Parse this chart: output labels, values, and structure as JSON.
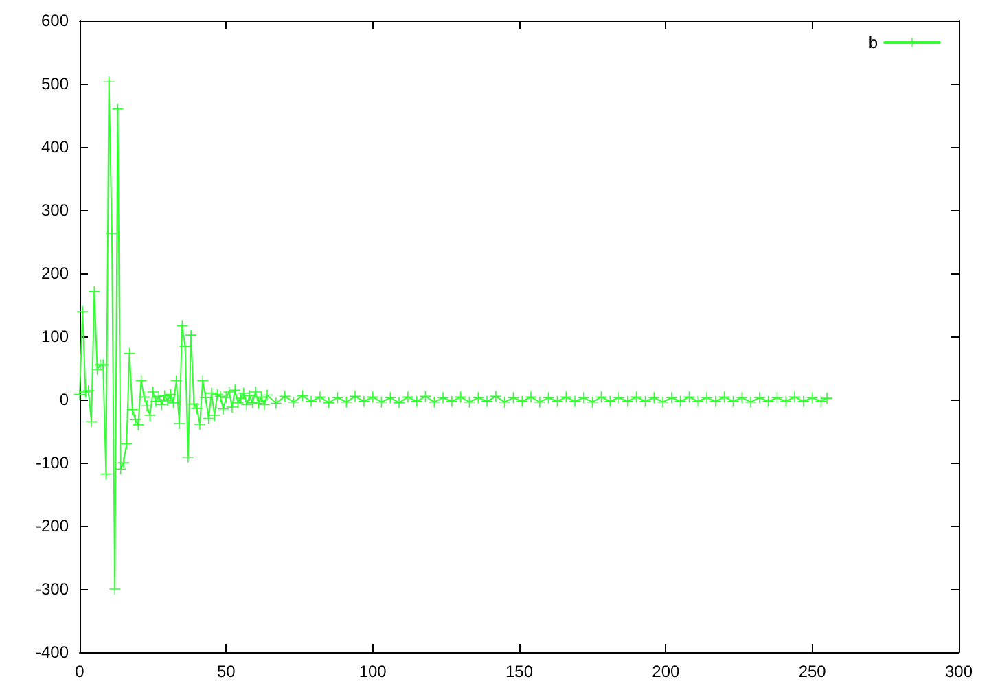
{
  "chart_data": {
    "type": "line",
    "marker": "cross",
    "line_style": "solid",
    "legend": "top right",
    "grid": false,
    "xlim": [
      0,
      300
    ],
    "xticks": [
      0,
      50,
      100,
      150,
      200,
      250,
      300
    ],
    "ylim": [
      -400,
      600
    ],
    "yticks": [
      -400,
      -300,
      -200,
      -100,
      0,
      100,
      200,
      300,
      400,
      500,
      600
    ],
    "series": [
      {
        "name": "b",
        "color": "#33ff33",
        "x": [
          0,
          1,
          2,
          3,
          4,
          5,
          6,
          7,
          8,
          9,
          10,
          11,
          12,
          13,
          14,
          15,
          16,
          17,
          18,
          19,
          20,
          21,
          22,
          23,
          24,
          25,
          26,
          27,
          28,
          29,
          30,
          31,
          32,
          33,
          34,
          35,
          36,
          37,
          38,
          39,
          40,
          41,
          42,
          43,
          44,
          45,
          46,
          47,
          48,
          49,
          50,
          51,
          52,
          53,
          54,
          55,
          56,
          57,
          58,
          59,
          60,
          61,
          62,
          63,
          64,
          67,
          70,
          73,
          76,
          79,
          82,
          85,
          88,
          91,
          94,
          97,
          100,
          103,
          106,
          109,
          112,
          115,
          118,
          121,
          124,
          127,
          130,
          133,
          136,
          139,
          142,
          145,
          148,
          151,
          154,
          157,
          160,
          163,
          166,
          169,
          172,
          175,
          178,
          181,
          184,
          187,
          190,
          193,
          196,
          199,
          202,
          205,
          208,
          211,
          214,
          217,
          220,
          223,
          226,
          229,
          232,
          235,
          238,
          241,
          244,
          247,
          250,
          253,
          255
        ],
        "values": [
          8,
          139,
          12,
          14,
          -35,
          171,
          48,
          55,
          55,
          -118,
          503,
          263,
          -300,
          460,
          -110,
          -100,
          -70,
          73,
          -16,
          -32,
          -40,
          30,
          4,
          -10,
          -25,
          12,
          -3,
          5,
          -8,
          6,
          -2,
          8,
          -5,
          30,
          -38,
          117,
          84,
          -91,
          102,
          -7,
          -14,
          -39,
          30,
          3,
          -30,
          10,
          -25,
          8,
          5,
          -15,
          3,
          12,
          -12,
          15,
          -5,
          2,
          10,
          -8,
          6,
          -5,
          12,
          -6,
          4,
          -8,
          7,
          -6,
          5,
          -4,
          6,
          -3,
          4,
          -5,
          3,
          -4,
          5,
          -3,
          4,
          -4,
          3,
          -5,
          4,
          -3,
          5,
          -4,
          3,
          -3,
          4,
          -4,
          3,
          -3,
          5,
          -4,
          3,
          -3,
          4,
          -4,
          3,
          -3,
          4,
          -3,
          3,
          -4,
          4,
          -3,
          3,
          -3,
          4,
          -3,
          3,
          -4,
          3,
          -3,
          4,
          -3,
          3,
          -3,
          4,
          -3,
          3,
          -4,
          3,
          -3,
          3,
          -3,
          4,
          -3,
          3,
          -3,
          2
        ]
      }
    ]
  }
}
